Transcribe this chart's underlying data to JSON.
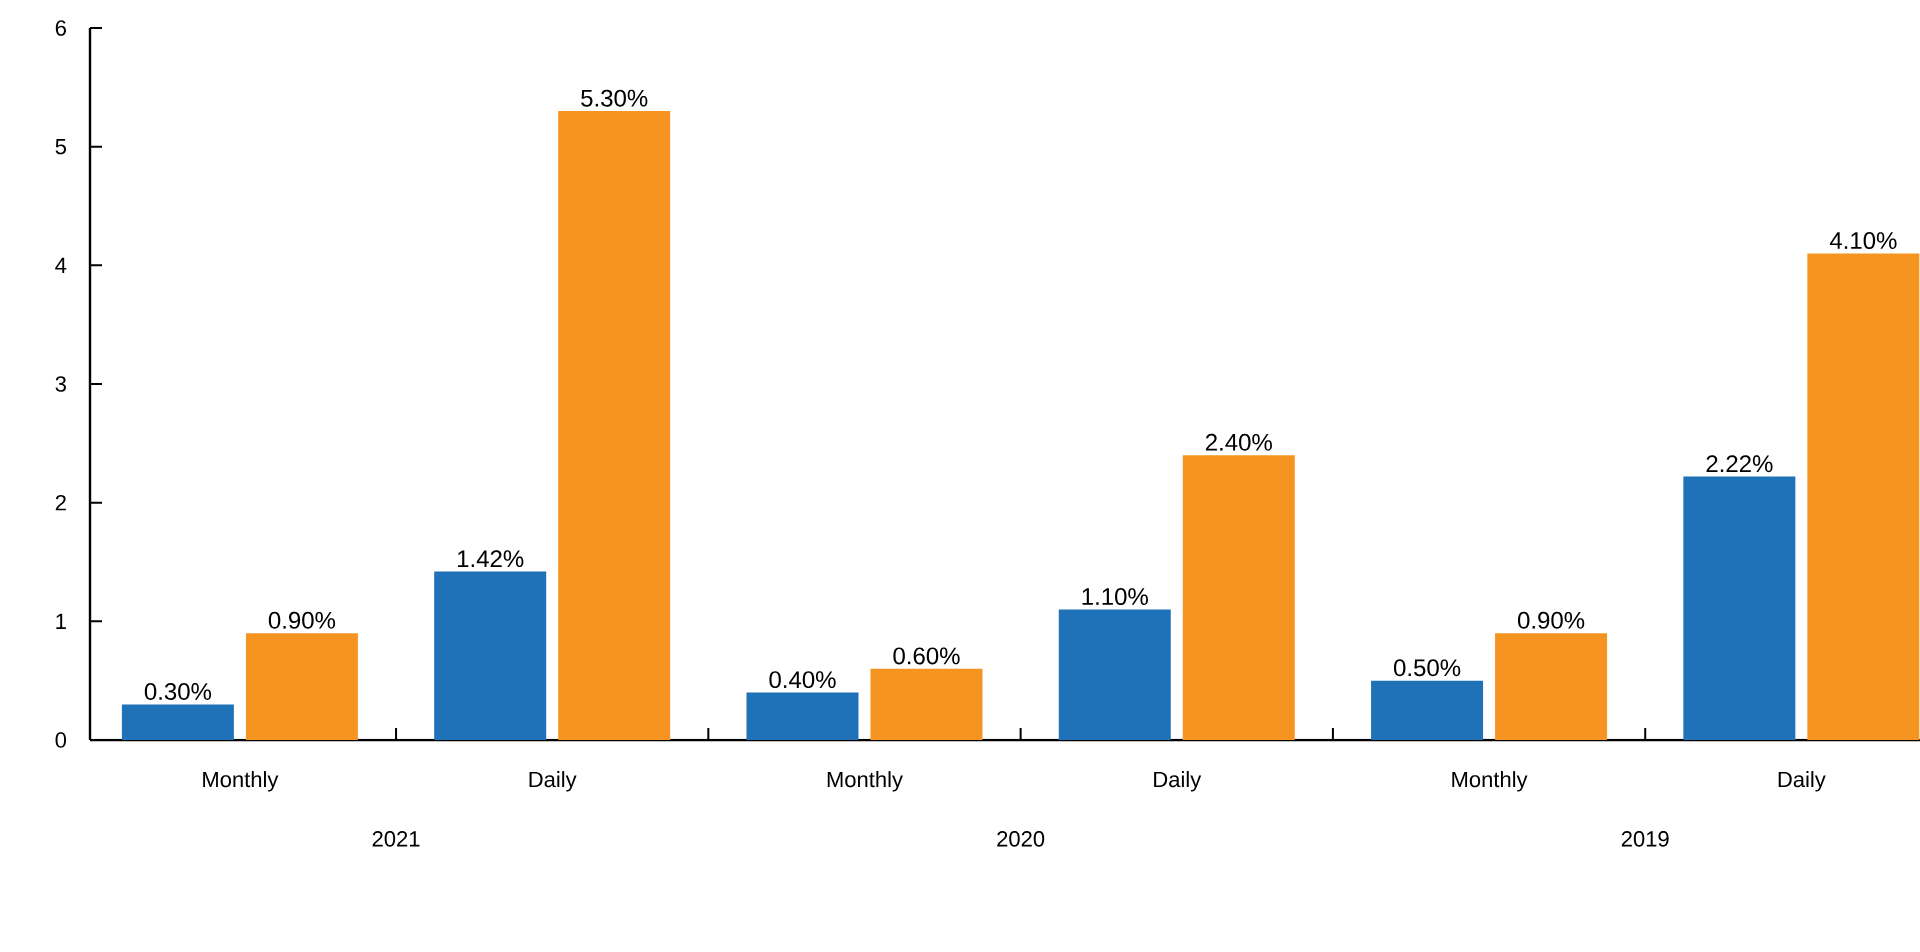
{
  "chart_data": {
    "type": "bar",
    "categories": [
      "Monthly",
      "Daily",
      "Monthly",
      "Daily",
      "Monthly",
      "Daily"
    ],
    "series": [
      {
        "color": "#1f72b8",
        "values": [
          0.3,
          1.42,
          0.4,
          1.1,
          0.5,
          2.22
        ],
        "value_labels": [
          "0.30%",
          "1.42%",
          "0.40%",
          "1.10%",
          "0.50%",
          "2.22%"
        ]
      },
      {
        "color": "#f59420",
        "values": [
          0.9,
          5.3,
          0.6,
          2.4,
          0.9,
          4.1
        ],
        "value_labels": [
          "0.90%",
          "5.30%",
          "0.60%",
          "2.40%",
          "0.90%",
          "4.10%"
        ]
      }
    ],
    "ylim": [
      0,
      6
    ],
    "yticks": [
      0,
      1,
      2,
      3,
      4,
      5,
      6
    ],
    "annotations": [
      "2021",
      "2020",
      "2019"
    ]
  }
}
